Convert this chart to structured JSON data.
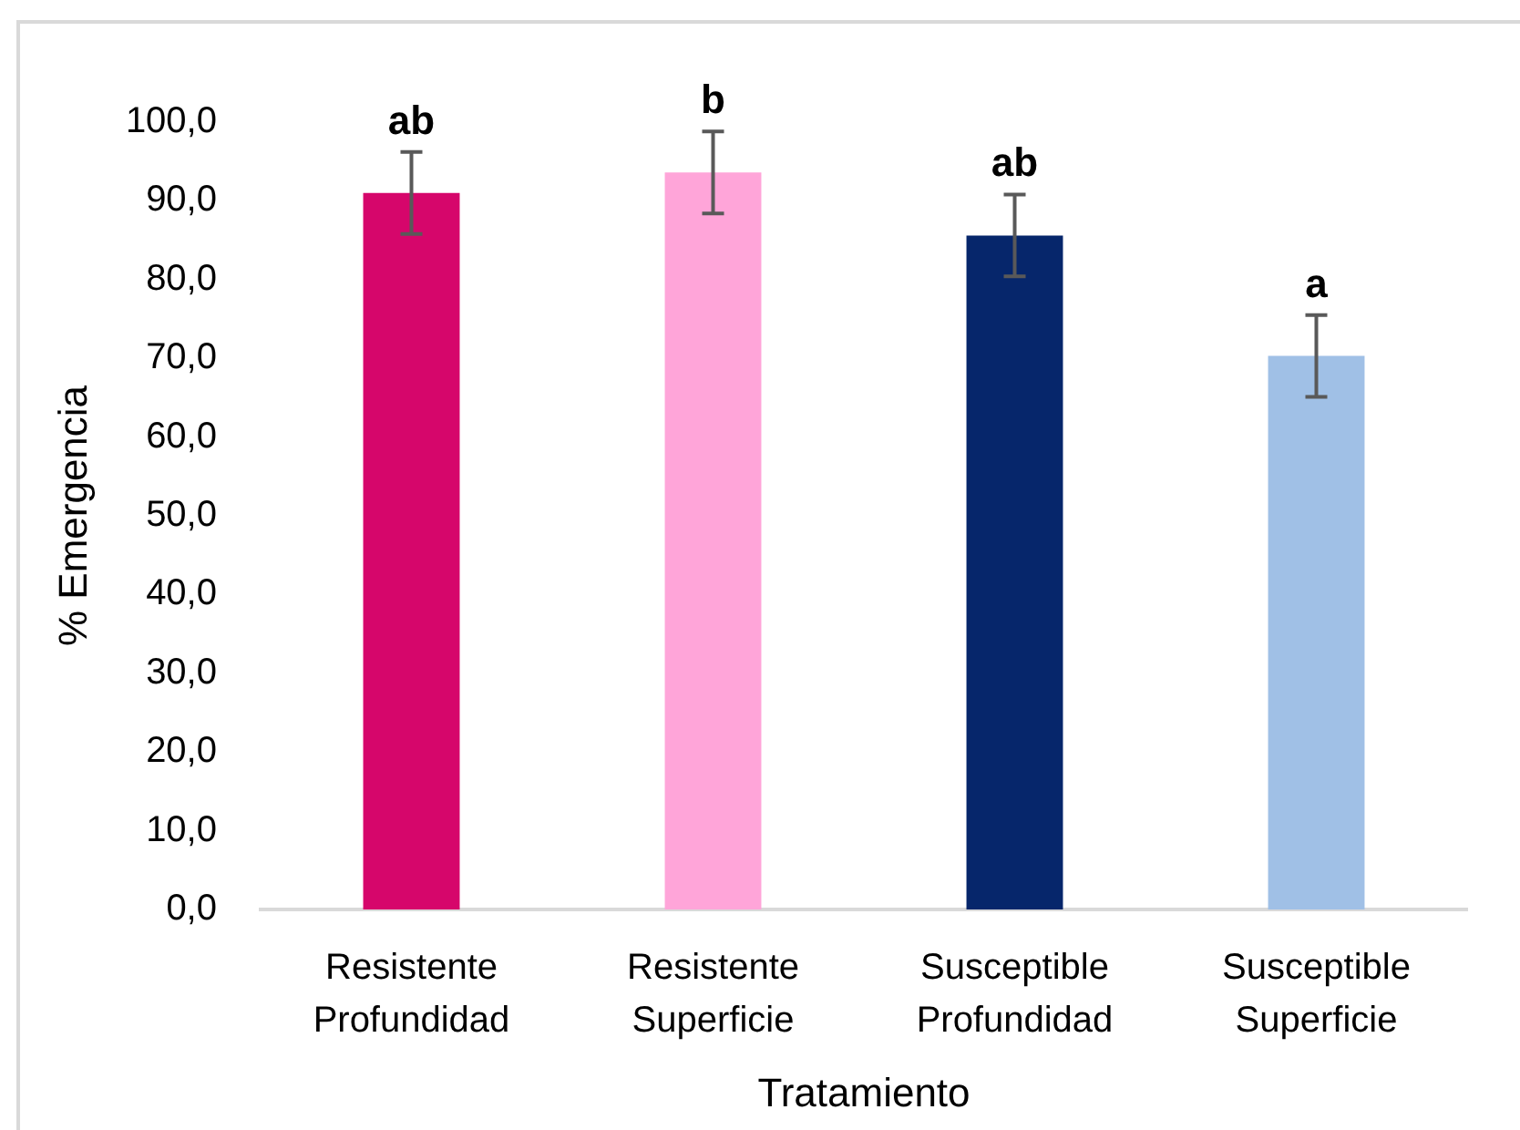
{
  "chart_data": {
    "type": "bar",
    "xlabel": "Tratamiento",
    "ylabel": "% Emergencia",
    "categories": [
      "Resistente Profundidad",
      "Resistente Superficie",
      "Susceptible Profundidad",
      "Susceptible Superficie"
    ],
    "values": [
      91.0,
      93.6,
      85.6,
      70.3
    ],
    "errors": [
      5.2,
      5.2,
      5.2,
      5.2
    ],
    "colors": [
      "#d6066b",
      "#ffa5d9",
      "#06266b",
      "#a0c0e6"
    ],
    "ylim": [
      0,
      100
    ],
    "yticks": [
      {
        "value": 0,
        "label": "0,0"
      },
      {
        "value": 10,
        "label": "10,0"
      },
      {
        "value": 20,
        "label": "20,0"
      },
      {
        "value": 30,
        "label": "30,0"
      },
      {
        "value": 40,
        "label": "40,0"
      },
      {
        "value": 50,
        "label": "50,0"
      },
      {
        "value": 60,
        "label": "60,0"
      },
      {
        "value": 70,
        "label": "70,0"
      },
      {
        "value": 80,
        "label": "80,0"
      },
      {
        "value": 90,
        "label": "90,0"
      },
      {
        "value": 100,
        "label": "100,0"
      }
    ],
    "grid": false,
    "legend": false,
    "annotations": [
      {
        "text": "ab",
        "x": "Resistente Profundidad",
        "y": 96.2
      },
      {
        "text": "b",
        "x": "Resistente Superficie",
        "y": 98.8
      },
      {
        "text": "ab",
        "x": "Susceptible Profundidad",
        "y": 90.8
      },
      {
        "text": "a",
        "x": "Susceptible Superficie",
        "y": 75.5
      }
    ]
  }
}
